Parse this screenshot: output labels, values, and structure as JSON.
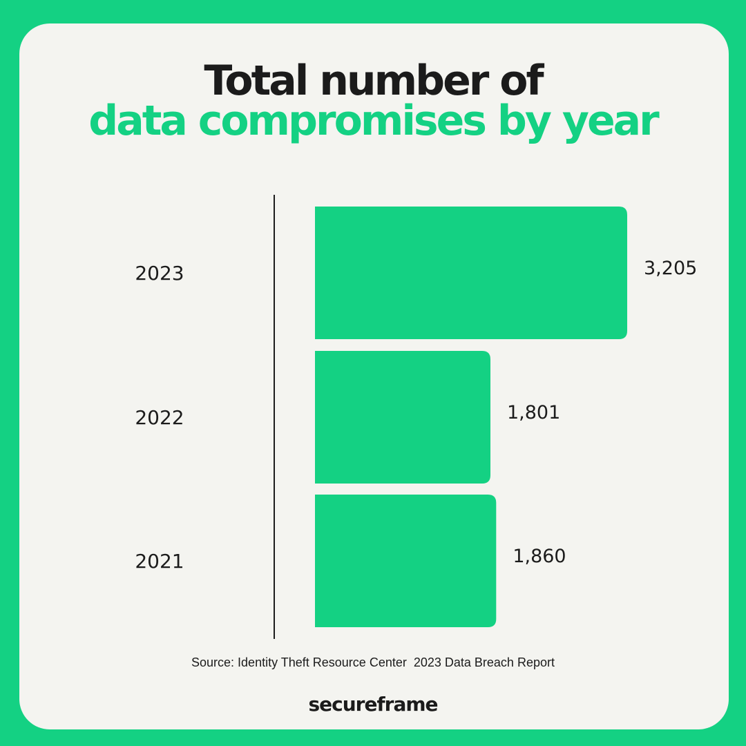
{
  "header": {
    "title_line1": "Total number of",
    "title_line2": "data compromises by year"
  },
  "footer": {
    "source": "Source: Identity Theft Resource Center  2023 Data Breach Report",
    "brand": "secureframe"
  },
  "colors": {
    "background": "#14d183",
    "card": "#f4f4f0",
    "bar": "#14d183",
    "text": "#1b1b1b"
  },
  "chart_data": {
    "type": "bar",
    "orientation": "horizontal",
    "categories": [
      "2023",
      "2022",
      "2021"
    ],
    "values": [
      3205,
      1801,
      1860
    ],
    "value_labels": [
      "3,205",
      "1,801",
      "1,860"
    ],
    "title": "Total number of data compromises by year",
    "xlabel": "",
    "ylabel": "",
    "grid": false,
    "legend": "none"
  }
}
